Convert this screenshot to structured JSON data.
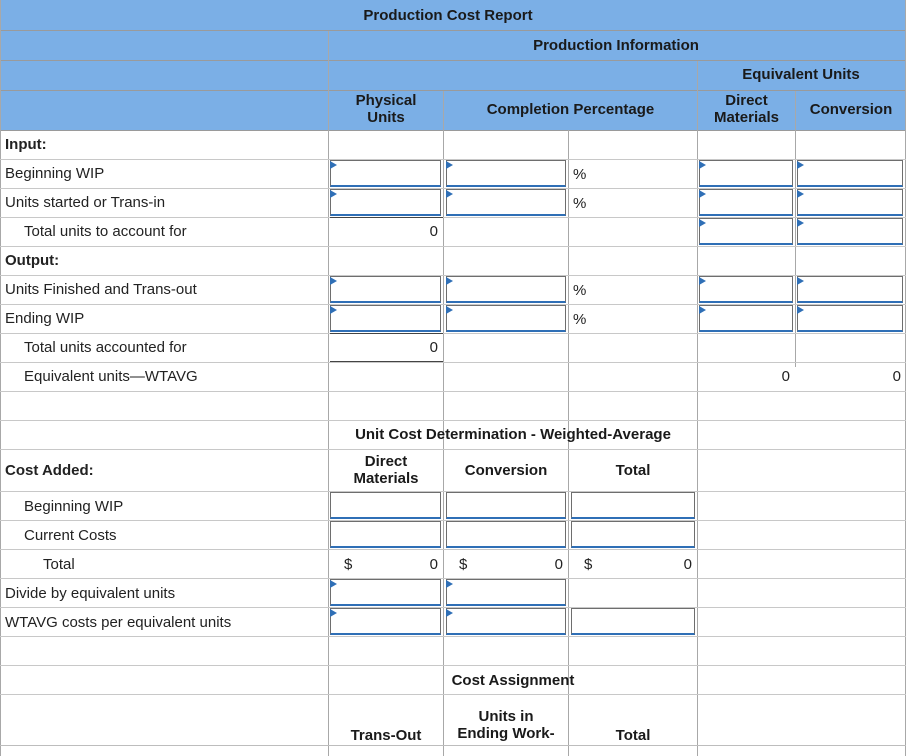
{
  "report": {
    "title": "Production Cost Report",
    "section_production_info": "Production Information",
    "equivalent_units": "Equivalent Units",
    "col_physical_line1": "Physical",
    "col_physical_line2": "Units",
    "col_completion": "Completion Percentage",
    "col_dm_line1": "Direct",
    "col_dm_line2": "Materials",
    "col_conversion": "Conversion"
  },
  "input_section": {
    "heading": "Input:",
    "beginning_wip": "Beginning WIP",
    "units_started": "Units started or Trans-in",
    "total_to_account": "Total units to account for",
    "total_to_account_value": "0"
  },
  "output_section": {
    "heading": "Output:",
    "units_finished": "Units Finished and Trans-out",
    "ending_wip": "Ending WIP",
    "total_accounted": "Total units accounted for",
    "total_accounted_value": "0",
    "equivalent_wtavg": "Equivalent units—WTAVG",
    "equivalent_dm_value": "0",
    "equivalent_conv_value": "0"
  },
  "percent_sign": "%",
  "unit_cost": {
    "title": "Unit Cost Determination - Weighted-Average",
    "col_dm_line1": "Direct",
    "col_dm_line2": "Materials",
    "col_conversion": "Conversion",
    "col_total": "Total",
    "cost_added": "Cost Added:",
    "beginning_wip": "Beginning WIP",
    "current_costs": "Current Costs",
    "total": "Total",
    "currency": "$",
    "total_dm_value": "0",
    "total_conv_value": "0",
    "total_total_value": "0",
    "divide_by": "Divide by equivalent units",
    "wtavg_costs": "WTAVG costs per equivalent units"
  },
  "cost_assignment": {
    "title": "Cost Assignment",
    "col_transout": "Trans-Out",
    "col_units_in_line1": "Units in",
    "col_units_in_line2": "Ending Work-",
    "col_total": "Total"
  },
  "colors": {
    "header_band": "#7bafe6",
    "input_accent": "#2f6fb6"
  }
}
